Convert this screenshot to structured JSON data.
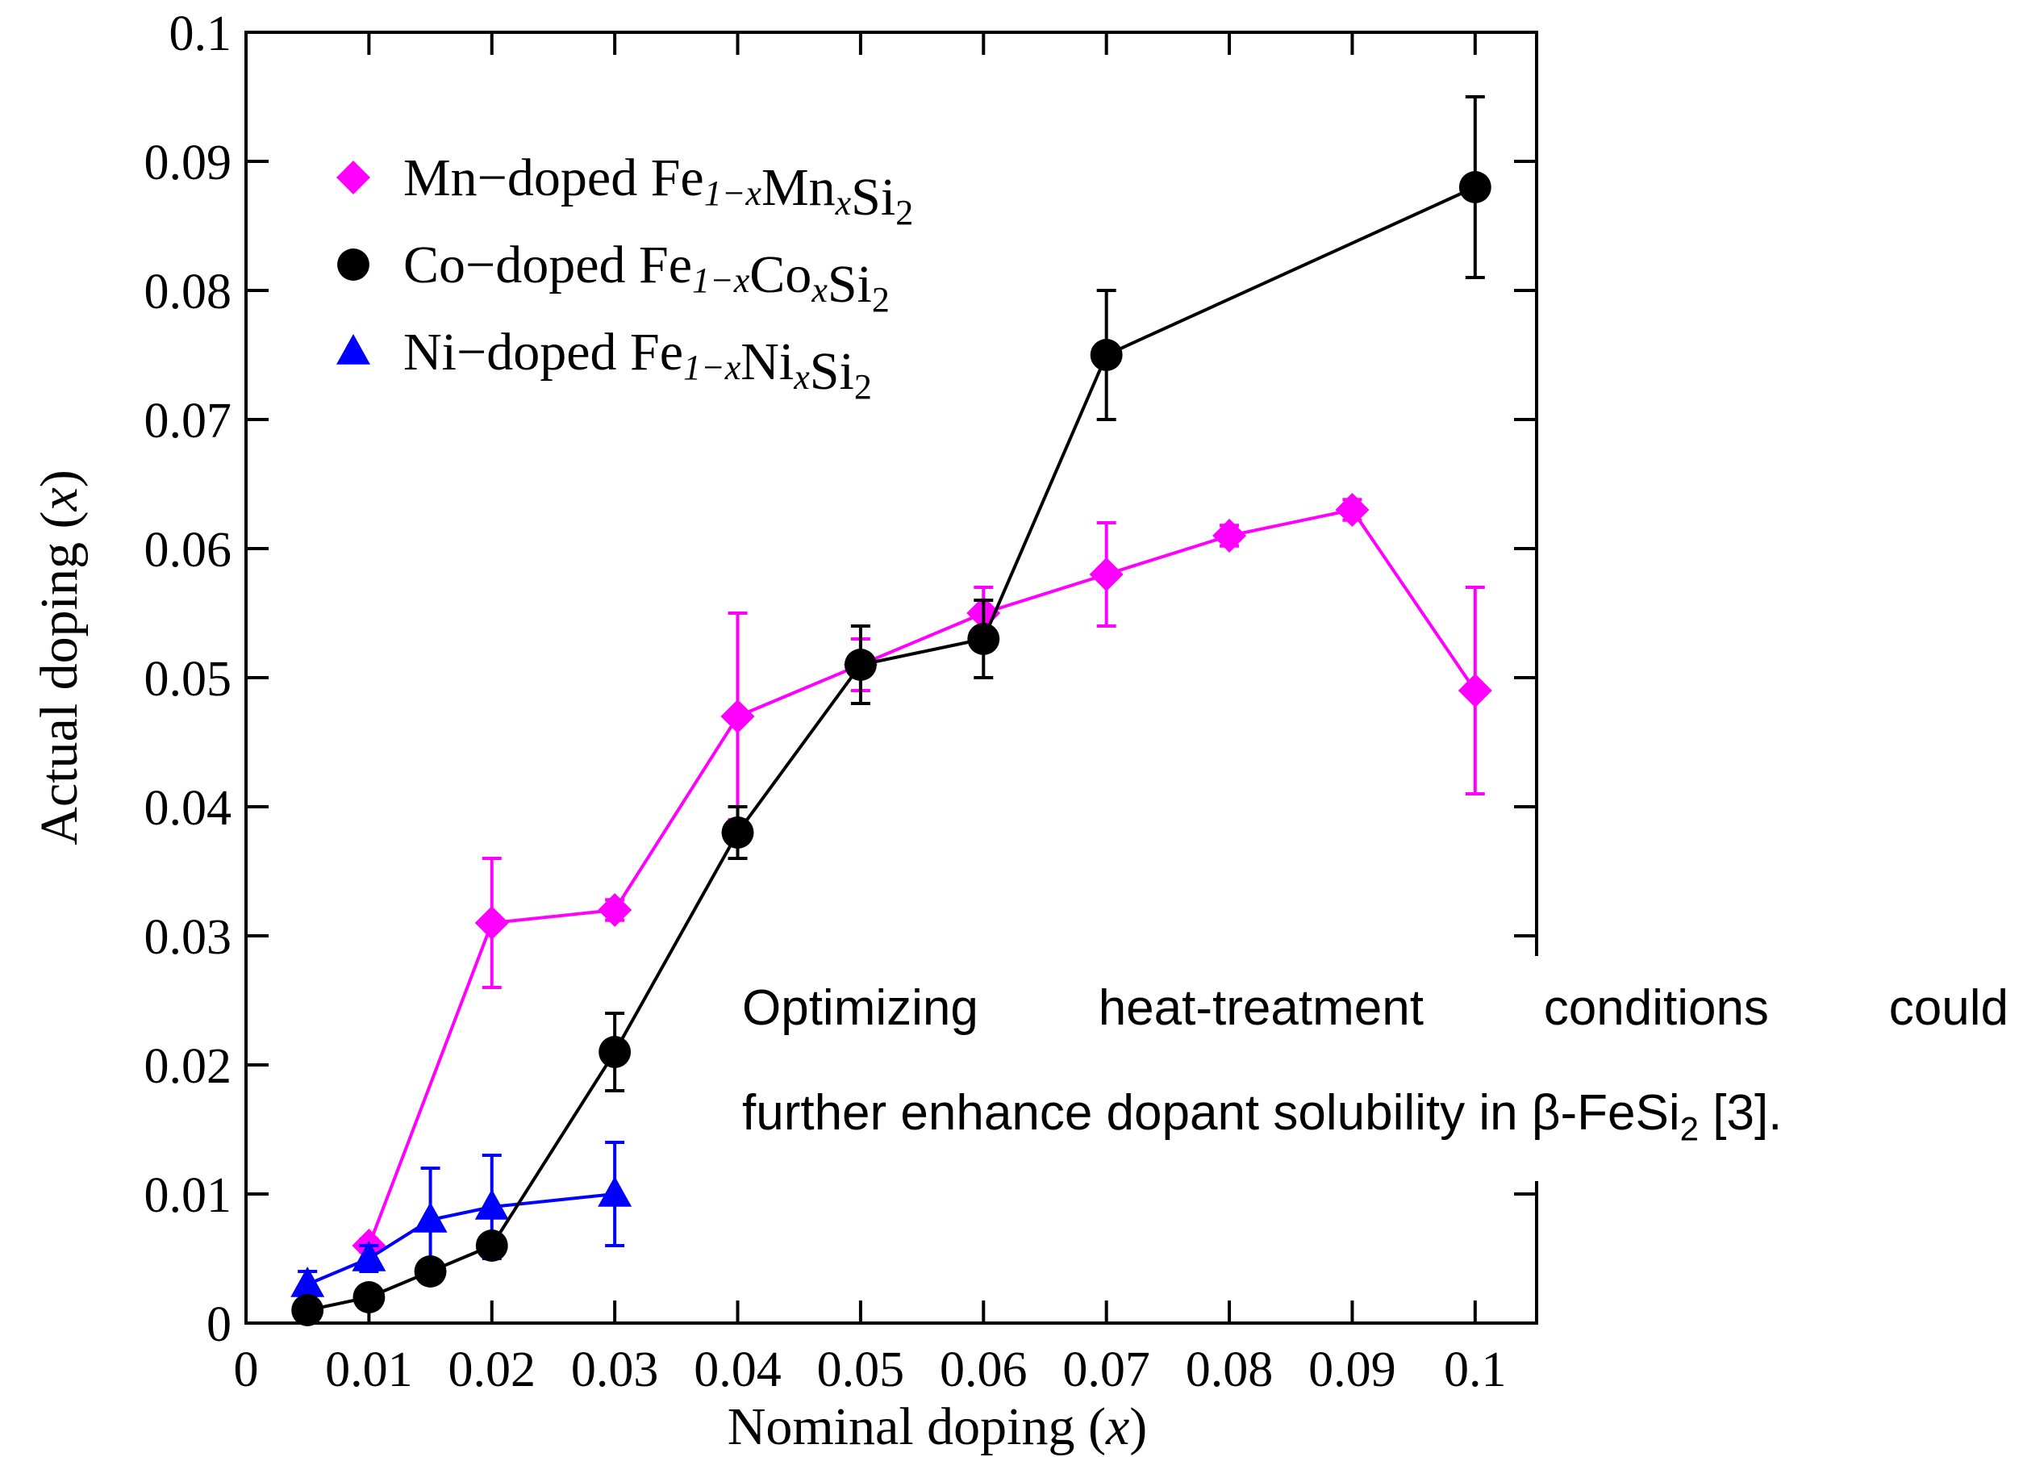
{
  "chart_data": {
    "type": "line",
    "title": "",
    "xlabel": "Nominal doping (x)",
    "ylabel": "Actual doping (x)",
    "xlim": [
      0,
      0.105
    ],
    "ylim": [
      0,
      0.1
    ],
    "xticks": [
      "0",
      "0.01",
      "0.02",
      "0.03",
      "0.04",
      "0.05",
      "0.06",
      "0.07",
      "0.08",
      "0.09",
      "0.1"
    ],
    "yticks": [
      "0",
      "0.01",
      "0.02",
      "0.03",
      "0.04",
      "0.05",
      "0.06",
      "0.07",
      "0.08",
      "0.09",
      "0.1"
    ],
    "legend_position": "top-left",
    "grid": false,
    "series": [
      {
        "name": "Mn−doped Fe1−xMnxSi2",
        "legend": {
          "pre": "Mn−doped Fe",
          "sub1": "1−x",
          "mid": "Mn",
          "sub2": "x",
          "post": "Si",
          "sub3": "2"
        },
        "color": "#ff00ff",
        "marker": "diamond",
        "points": [
          {
            "x": 0.01,
            "y": 0.006,
            "err": 0.0005
          },
          {
            "x": 0.02,
            "y": 0.031,
            "err": 0.005
          },
          {
            "x": 0.03,
            "y": 0.032,
            "err": 0.0008
          },
          {
            "x": 0.04,
            "y": 0.047,
            "err": 0.008
          },
          {
            "x": 0.05,
            "y": 0.051,
            "err": 0.002
          },
          {
            "x": 0.06,
            "y": 0.055,
            "err": 0.002
          },
          {
            "x": 0.07,
            "y": 0.058,
            "err": 0.004
          },
          {
            "x": 0.08,
            "y": 0.061,
            "err": 0.0008
          },
          {
            "x": 0.09,
            "y": 0.063,
            "err": 0.0008
          },
          {
            "x": 0.1,
            "y": 0.049,
            "err": 0.008
          }
        ]
      },
      {
        "name": "Co−doped Fe1−xCoxSi2",
        "legend": {
          "pre": "Co−doped Fe",
          "sub1": "1−x",
          "mid": "Co",
          "sub2": "x",
          "post": "Si",
          "sub3": "2"
        },
        "color": "#000000",
        "marker": "circle",
        "points": [
          {
            "x": 0.005,
            "y": 0.001,
            "err": 0
          },
          {
            "x": 0.01,
            "y": 0.002,
            "err": 0
          },
          {
            "x": 0.015,
            "y": 0.004,
            "err": 0
          },
          {
            "x": 0.02,
            "y": 0.006,
            "err": 0
          },
          {
            "x": 0.03,
            "y": 0.021,
            "err": 0.003
          },
          {
            "x": 0.04,
            "y": 0.038,
            "err": 0.002
          },
          {
            "x": 0.05,
            "y": 0.051,
            "err": 0.003
          },
          {
            "x": 0.06,
            "y": 0.053,
            "err": 0.003
          },
          {
            "x": 0.07,
            "y": 0.075,
            "err": 0.005
          },
          {
            "x": 0.1,
            "y": 0.088,
            "err": 0.007
          }
        ]
      },
      {
        "name": "Ni−doped Fe1−xNixSi2",
        "legend": {
          "pre": "Ni−doped Fe",
          "sub1": "1−x",
          "mid": "Ni",
          "sub2": "x",
          "post": "Si",
          "sub3": "2"
        },
        "color": "#0000ff",
        "marker": "triangle",
        "points": [
          {
            "x": 0.005,
            "y": 0.003,
            "err": 0.001
          },
          {
            "x": 0.01,
            "y": 0.005,
            "err": 0.001
          },
          {
            "x": 0.015,
            "y": 0.008,
            "err": 0.004
          },
          {
            "x": 0.02,
            "y": 0.009,
            "err": 0.004
          },
          {
            "x": 0.03,
            "y": 0.01,
            "err": 0.004
          }
        ]
      }
    ]
  },
  "annotation": {
    "line1_words": [
      "Optimizing",
      "heat-treatment",
      "conditions",
      "could"
    ],
    "line2_pre": "further enhance dopant solubility in β-FeSi",
    "line2_sub": "2",
    "line2_post": " [3]."
  }
}
